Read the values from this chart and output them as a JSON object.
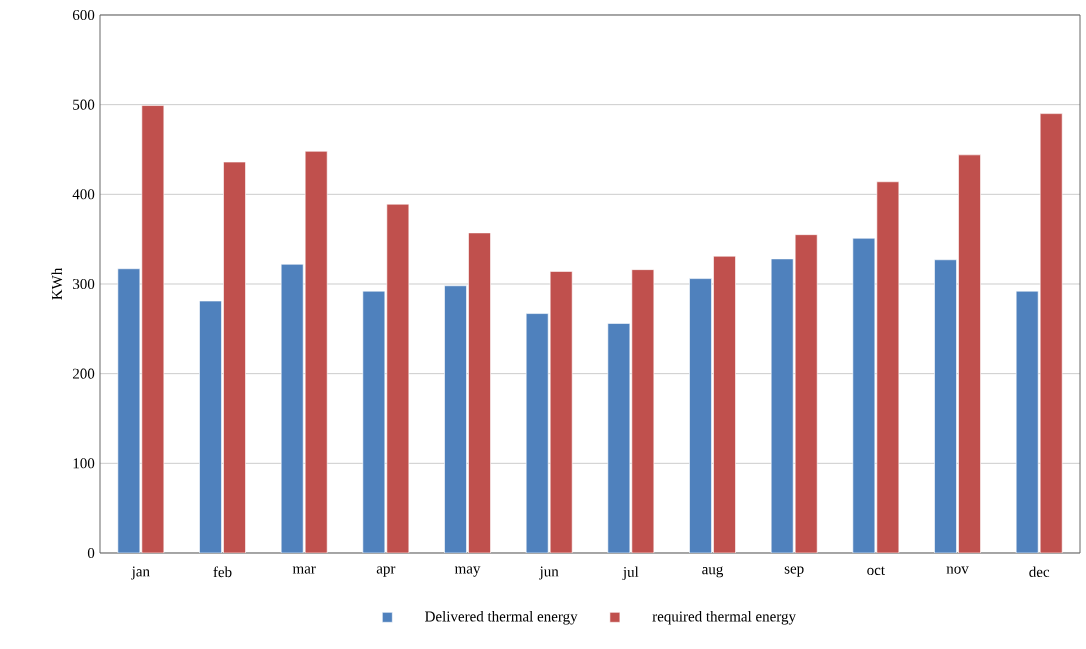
{
  "chart_data": {
    "type": "bar",
    "ylabel": "KWh",
    "categories": [
      "jan",
      "feb",
      "mar",
      "apr",
      "may",
      "jun",
      "jul",
      "aug",
      "sep",
      "oct",
      "nov",
      "dec"
    ],
    "series": [
      {
        "name": "Delivered thermal energy",
        "color": "#4f81bd",
        "values": [
          317,
          281,
          322,
          292,
          298,
          267,
          256,
          306,
          328,
          351,
          327,
          292
        ]
      },
      {
        "name": "required thermal energy",
        "color": "#c0504d",
        "values": [
          499,
          436,
          448,
          389,
          357,
          314,
          316,
          331,
          355,
          414,
          444,
          490
        ]
      }
    ],
    "ylim": [
      0,
      600
    ],
    "yticks": [
      0,
      100,
      200,
      300,
      400,
      500,
      600
    ],
    "grid": "y",
    "legend": "bottom"
  }
}
